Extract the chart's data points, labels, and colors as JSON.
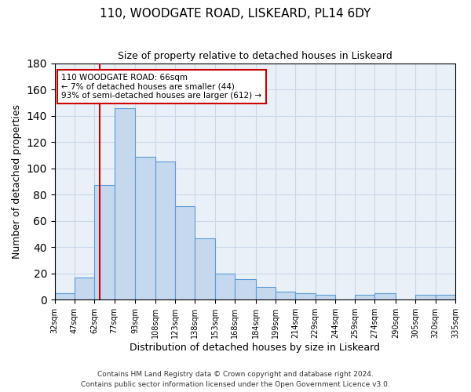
{
  "title": "110, WOODGATE ROAD, LISKEARD, PL14 6DY",
  "subtitle": "Size of property relative to detached houses in Liskeard",
  "xlabel": "Distribution of detached houses by size in Liskeard",
  "ylabel": "Number of detached properties",
  "bar_edges": [
    32,
    47,
    62,
    77,
    93,
    108,
    123,
    138,
    153,
    168,
    184,
    199,
    214,
    229,
    244,
    259,
    274,
    290,
    305,
    320,
    335
  ],
  "bar_heights": [
    5,
    17,
    87,
    146,
    109,
    105,
    71,
    47,
    20,
    16,
    10,
    6,
    5,
    4,
    0,
    4,
    5,
    0,
    4,
    4
  ],
  "bar_color": "#c5d8ed",
  "bar_edge_color": "#5b9bd5",
  "property_line_x": 66,
  "property_line_color": "#cc0000",
  "annotation_text": "110 WOODGATE ROAD: 66sqm\n← 7% of detached houses are smaller (44)\n93% of semi-detached houses are larger (612) →",
  "annotation_box_color": "#cc0000",
  "ylim": [
    0,
    180
  ],
  "yticks": [
    0,
    20,
    40,
    60,
    80,
    100,
    120,
    140,
    160,
    180
  ],
  "grid_color": "#c8d8e8",
  "bg_color": "#eaf0f8",
  "footer_line1": "Contains HM Land Registry data © Crown copyright and database right 2024.",
  "footer_line2": "Contains public sector information licensed under the Open Government Licence v3.0.",
  "tick_labels": [
    "32sqm",
    "47sqm",
    "62sqm",
    "77sqm",
    "93sqm",
    "108sqm",
    "123sqm",
    "138sqm",
    "153sqm",
    "168sqm",
    "184sqm",
    "199sqm",
    "214sqm",
    "229sqm",
    "244sqm",
    "259sqm",
    "274sqm",
    "290sqm",
    "305sqm",
    "320sqm",
    "335sqm"
  ]
}
